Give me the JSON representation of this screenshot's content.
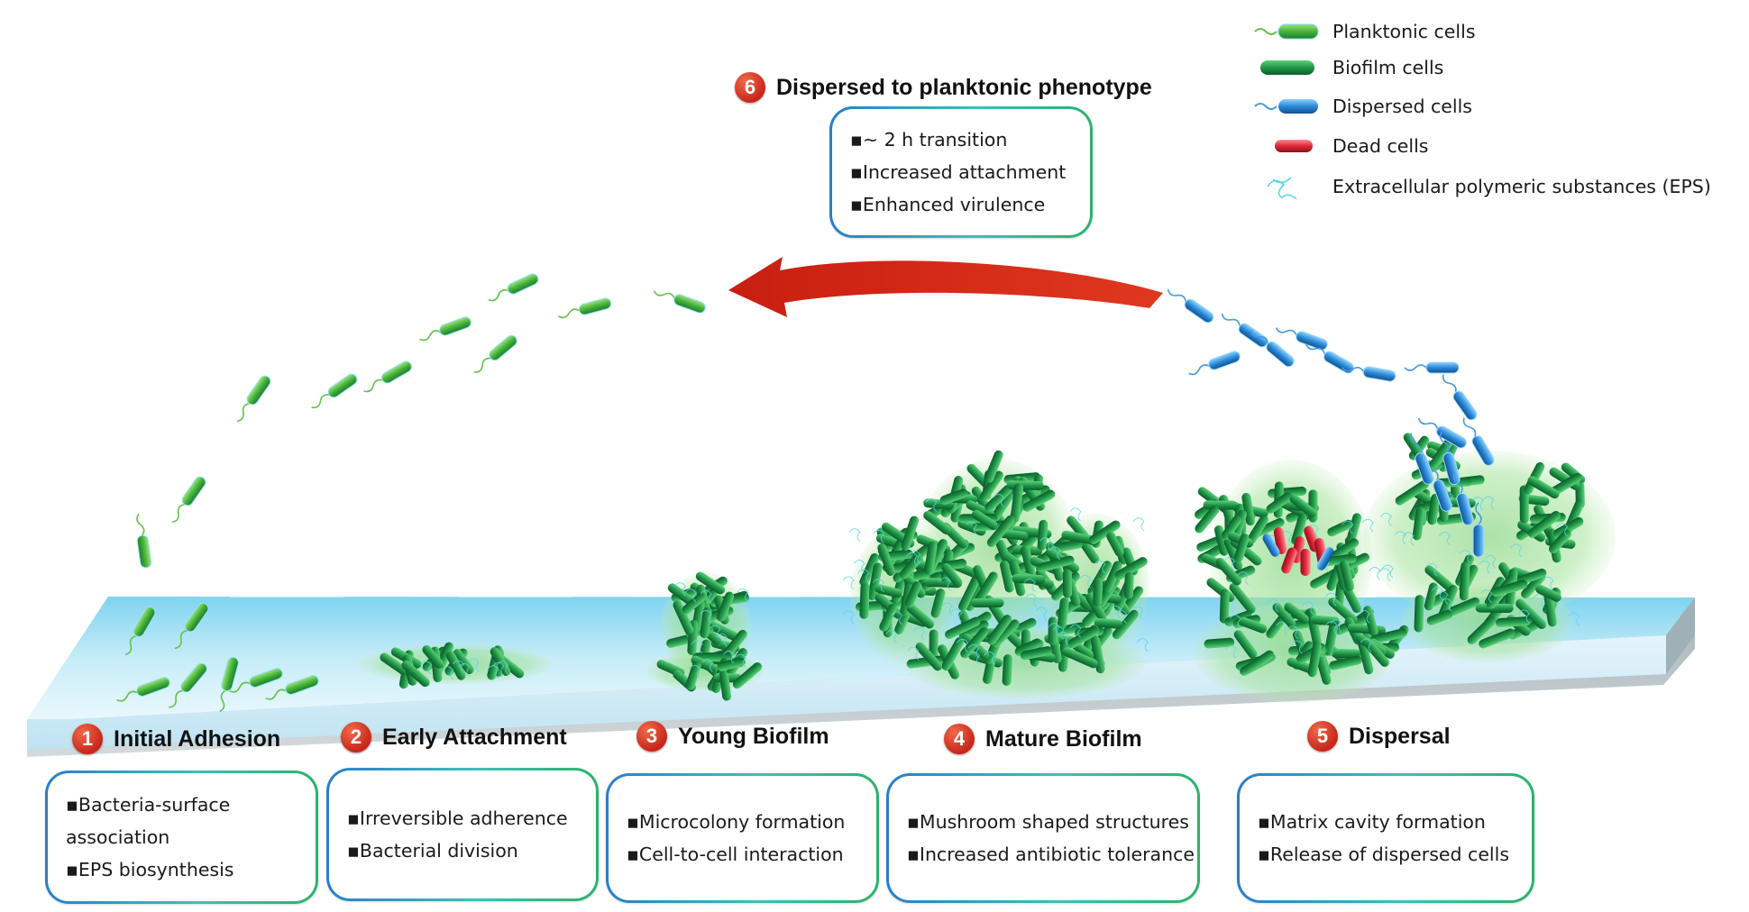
{
  "legend": [
    {
      "icon": "planktonic-cell-icon",
      "label": "Planktonic cells",
      "color": "#4cbb3a"
    },
    {
      "icon": "biofilm-cell-icon",
      "label": "Biofilm cells",
      "color": "#1e9a4a"
    },
    {
      "icon": "dispersed-cell-icon",
      "label": "Dispersed cells",
      "color": "#2a8ad6"
    },
    {
      "icon": "dead-cell-icon",
      "label": "Dead cells",
      "color": "#e0283a"
    },
    {
      "icon": "eps-icon",
      "label": "Extracellular polymeric substances (EPS)",
      "color": "#5fd6e6"
    }
  ],
  "stage6": {
    "number": "6",
    "title": "Dispersed to planktonic phenotype",
    "points": [
      "▪~ 2 h transition",
      "▪Increased attachment",
      "▪Enhanced virulence"
    ]
  },
  "stages": [
    {
      "number": "1",
      "title": "Initial Adhesion",
      "points": [
        "▪Bacteria-surface",
        "association",
        "▪EPS biosynthesis"
      ]
    },
    {
      "number": "2",
      "title": "Early Attachment",
      "points": [
        "▪Irreversible adherence",
        "▪Bacterial division"
      ]
    },
    {
      "number": "3",
      "title": "Young Biofilm",
      "points": [
        "▪Microcolony formation",
        "▪Cell-to-cell interaction"
      ]
    },
    {
      "number": "4",
      "title": "Mature Biofilm",
      "points": [
        "▪Mushroom shaped structures",
        "▪Increased antibiotic tolerance"
      ]
    },
    {
      "number": "5",
      "title": "Dispersal",
      "points": [
        "▪Matrix cavity formation",
        "▪Release of dispersed cells"
      ]
    }
  ],
  "colors": {
    "accent_red": "#d3261a",
    "box_border_start": "#2a7ec9",
    "box_border_end": "#2ab36a",
    "surface": "#c9ecf7"
  }
}
